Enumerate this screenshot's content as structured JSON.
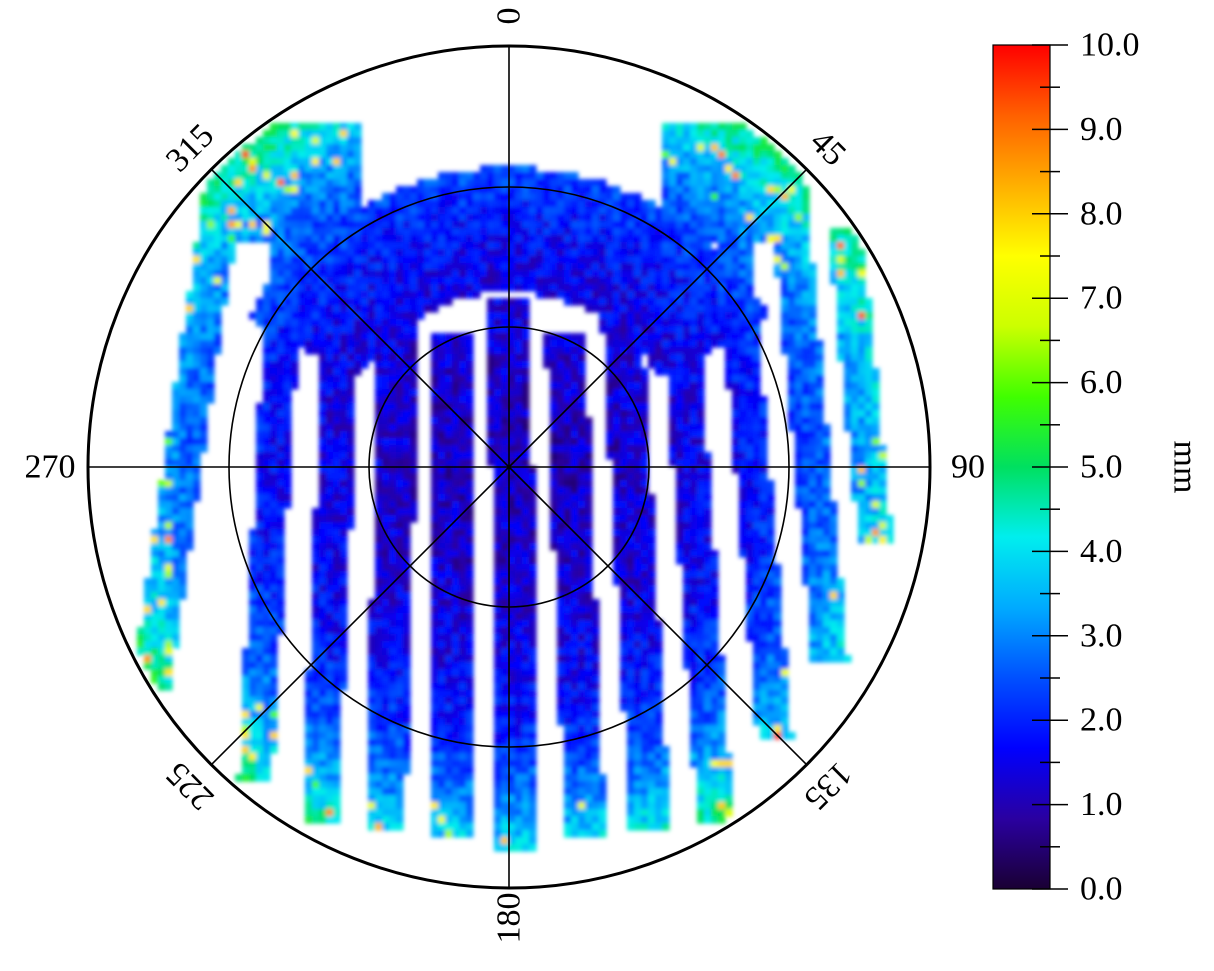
{
  "chart_data": {
    "type": "heatmap",
    "projection": "polar",
    "angle_labels": [
      "0",
      "45",
      "90",
      "135",
      "180",
      "225",
      "270",
      "315"
    ],
    "angle_values_deg": [
      0,
      45,
      90,
      135,
      180,
      225,
      270,
      315
    ],
    "angle_direction": "clockwise",
    "angle_zero_at": "top",
    "radial_gridlines": 3,
    "radial_tick_labels": [],
    "grid": true,
    "colorbar": {
      "title": "mm",
      "tick_labels": [
        "0.0",
        "1.0",
        "2.0",
        "3.0",
        "4.0",
        "5.0",
        "6.0",
        "7.0",
        "8.0",
        "9.0",
        "10.0"
      ],
      "range": [
        0,
        10
      ],
      "colormap": "jet",
      "colors": [
        "#1a0033",
        "#2a00a0",
        "#0000ff",
        "#0050ff",
        "#00aaff",
        "#00eeee",
        "#00e060",
        "#40ff00",
        "#ccff00",
        "#ffff00",
        "#ffb000",
        "#ff6000",
        "#ff0000"
      ],
      "position": "right"
    },
    "series": [
      {
        "description_value_range": [
          1.0,
          9.5
        ],
        "typical_value": 1.5,
        "pattern": "thickness map over bowl-shaped surface with bands of measured regions"
      }
    ]
  }
}
